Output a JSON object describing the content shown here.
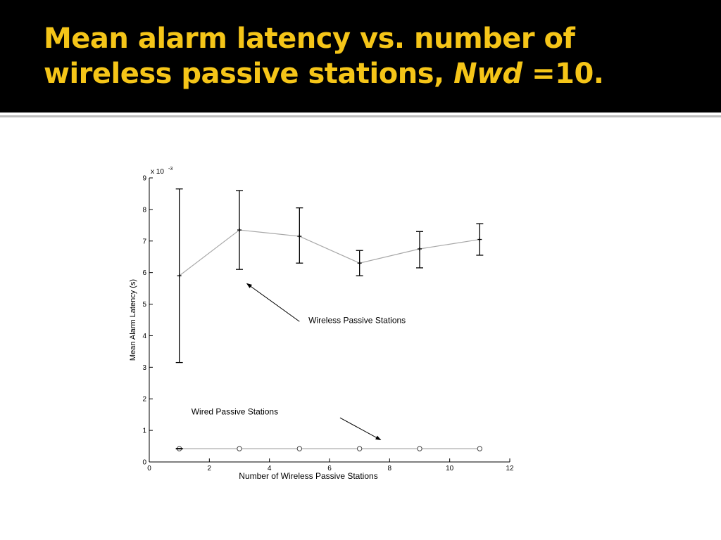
{
  "slide": {
    "title_line1": "Mean alarm latency vs. number of",
    "title_line2_pre": "wireless passive stations, ",
    "title_line2_italic": "Nwd",
    "title_line2_post": " =10."
  },
  "chart_data": {
    "type": "line",
    "title": "",
    "xlabel": "Number of Wireless Passive Stations",
    "ylabel": "Mean Alarm Latency (s)",
    "y_multiplier_label": "x 10",
    "y_multiplier_exp": "-3",
    "xlim": [
      0,
      12
    ],
    "ylim": [
      0,
      9
    ],
    "xticks": [
      0,
      2,
      4,
      6,
      8,
      10,
      12
    ],
    "yticks": [
      0,
      1,
      2,
      3,
      4,
      5,
      6,
      7,
      8,
      9
    ],
    "grid": false,
    "series": [
      {
        "name": "Wireless Passive Stations",
        "x": [
          1,
          3,
          5,
          7,
          9,
          11
        ],
        "y": [
          5.9,
          7.35,
          7.15,
          6.3,
          6.75,
          7.05
        ],
        "err_low": [
          3.15,
          6.1,
          6.3,
          5.9,
          6.15,
          6.55
        ],
        "err_high": [
          8.65,
          8.6,
          8.05,
          6.7,
          7.3,
          7.55
        ],
        "marker": "+",
        "color": "#a8a8a8"
      },
      {
        "name": "Wired Passive Stations",
        "x": [
          1,
          3,
          5,
          7,
          9,
          11
        ],
        "y": [
          0.42,
          0.42,
          0.42,
          0.42,
          0.42,
          0.42
        ],
        "marker": "o",
        "color": "#a8a8a8"
      }
    ],
    "annotations": [
      {
        "text": "Wireless Passive Stations",
        "label_at": [
          5.3,
          4.4
        ],
        "arrow_from": [
          5.0,
          4.45
        ],
        "arrow_to": [
          3.25,
          5.65
        ]
      },
      {
        "text": "Wired Passive Stations",
        "label_at": [
          1.4,
          1.5
        ],
        "arrow_from": [
          6.35,
          1.4
        ],
        "arrow_to": [
          7.7,
          0.7
        ]
      }
    ]
  }
}
